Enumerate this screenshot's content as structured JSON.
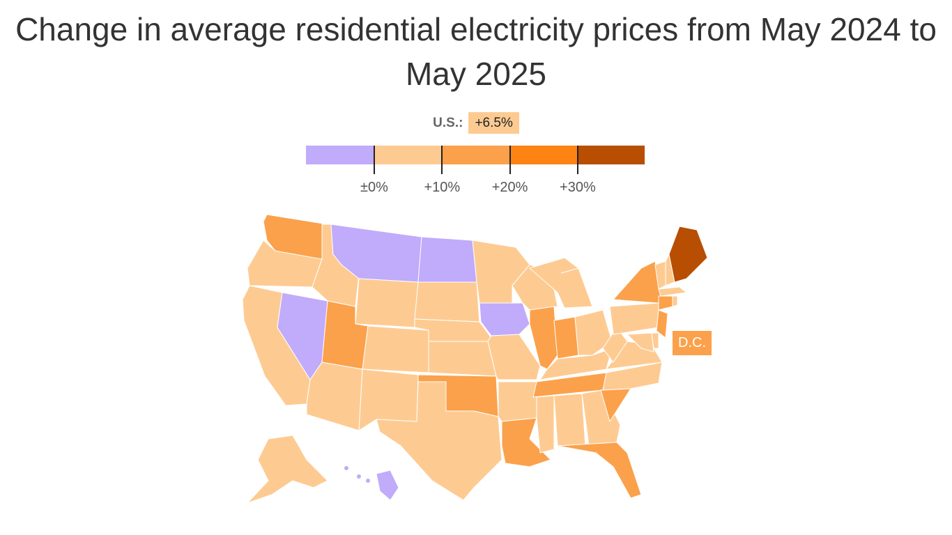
{
  "title": "Change in average residential electricity prices from May 2024 to May 2025",
  "us_average": {
    "label": "U.S.:",
    "value": "+6.5%",
    "bin": 1
  },
  "legend": {
    "bins": [
      {
        "range": "below 0%",
        "color": "#c1abfb"
      },
      {
        "range": "0% to 10%",
        "color": "#fdcb92"
      },
      {
        "range": "10% to 20%",
        "color": "#fba14b"
      },
      {
        "range": "20% to 30%",
        "color": "#fd8315"
      },
      {
        "range": "above 30%",
        "color": "#b84e02"
      }
    ],
    "ticks": [
      "±0%",
      "+10%",
      "+20%",
      "+30%"
    ]
  },
  "dc_label": {
    "label": "D.C.",
    "bin": 2
  },
  "states": {
    "WA": 2,
    "OR": 1,
    "CA": 1,
    "NV": 0,
    "ID": 1,
    "MT": 0,
    "WY": 1,
    "UT": 2,
    "AZ": 1,
    "CO": 1,
    "NM": 1,
    "ND": 0,
    "SD": 1,
    "NE": 1,
    "KS": 1,
    "OK": 2,
    "TX": 1,
    "MN": 1,
    "IA": 0,
    "MO": 1,
    "AR": 1,
    "LA": 2,
    "WI": 1,
    "IL": 2,
    "MI": 1,
    "IN": 2,
    "OH": 1,
    "KY": 1,
    "TN": 2,
    "MS": 1,
    "AL": 1,
    "GA": 1,
    "FL": 2,
    "SC": 2,
    "NC": 1,
    "VA": 1,
    "WV": 1,
    "PA": 1,
    "NY": 2,
    "VT": 1,
    "NH": 1,
    "ME": 4,
    "MA": 1,
    "CT": 2,
    "RI": 1,
    "NJ": 2,
    "MD": 1,
    "DE": 1,
    "AK": 1,
    "HI": 0
  }
}
